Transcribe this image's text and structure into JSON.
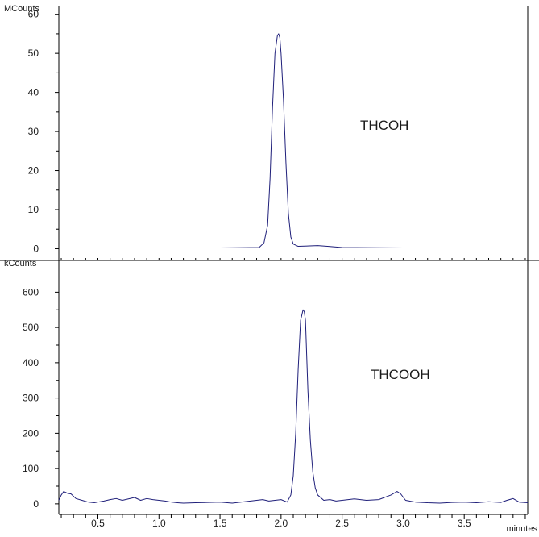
{
  "chart_data": [
    {
      "type": "line",
      "ylabel": "MCounts",
      "ylim": [
        -3,
        62
      ],
      "xlim": [
        0.18,
        4.02
      ],
      "y_ticks": [
        "0",
        "10",
        "20",
        "30",
        "40",
        "50",
        "60"
      ],
      "annotation": "THCOH",
      "series_color": "#1f1f7a",
      "grid": false,
      "series": [
        {
          "x": [
            0.18,
            1.0,
            1.5,
            1.82,
            1.86,
            1.89,
            1.91,
            1.93,
            1.95,
            1.97,
            1.98,
            1.99,
            2.0,
            2.02,
            2.04,
            2.06,
            2.08,
            2.1,
            2.14,
            2.3,
            2.38,
            2.5,
            3.0,
            3.5,
            4.02
          ],
          "y": [
            0.2,
            0.2,
            0.2,
            0.3,
            1.5,
            6,
            18,
            36,
            50,
            54.5,
            55,
            54,
            50,
            38,
            22,
            9,
            3,
            1.2,
            0.6,
            0.8,
            0.6,
            0.3,
            0.2,
            0.2,
            0.2
          ]
        }
      ]
    },
    {
      "type": "line",
      "ylabel": "kCounts",
      "xlabel": "minutes",
      "ylim": [
        -30,
        690
      ],
      "xlim": [
        0.18,
        4.02
      ],
      "x_ticks": [
        "0.5",
        "1.0",
        "1.5",
        "2.0",
        "2.5",
        "3.0",
        "3.5"
      ],
      "y_ticks": [
        "0",
        "100",
        "200",
        "300",
        "400",
        "500",
        "600"
      ],
      "annotation": "THCOOH",
      "series_color": "#1f1f7a",
      "grid": false,
      "series": [
        {
          "x": [
            0.18,
            0.2,
            0.22,
            0.25,
            0.28,
            0.32,
            0.37,
            0.42,
            0.47,
            0.5,
            0.55,
            0.6,
            0.65,
            0.7,
            0.75,
            0.8,
            0.85,
            0.9,
            0.95,
            1.0,
            1.05,
            1.1,
            1.15,
            1.2,
            1.3,
            1.4,
            1.5,
            1.6,
            1.7,
            1.8,
            1.85,
            1.9,
            1.95,
            2.0,
            2.05,
            2.08,
            2.1,
            2.12,
            2.14,
            2.16,
            2.18,
            2.19,
            2.2,
            2.21,
            2.22,
            2.24,
            2.26,
            2.28,
            2.3,
            2.35,
            2.4,
            2.45,
            2.5,
            2.6,
            2.7,
            2.8,
            2.9,
            2.95,
            2.98,
            3.02,
            3.1,
            3.2,
            3.3,
            3.4,
            3.5,
            3.6,
            3.7,
            3.8,
            3.85,
            3.9,
            3.95,
            4.02
          ],
          "y": [
            10,
            25,
            35,
            30,
            28,
            15,
            10,
            5,
            3,
            5,
            8,
            12,
            15,
            10,
            14,
            18,
            10,
            15,
            12,
            10,
            8,
            5,
            3,
            2,
            3,
            4,
            5,
            2,
            6,
            10,
            12,
            8,
            10,
            12,
            5,
            25,
            80,
            200,
            380,
            520,
            550,
            545,
            520,
            420,
            320,
            180,
            90,
            45,
            25,
            10,
            12,
            8,
            10,
            14,
            10,
            12,
            25,
            35,
            28,
            10,
            5,
            3,
            2,
            4,
            5,
            3,
            6,
            4,
            10,
            15,
            5,
            3
          ]
        }
      ]
    }
  ]
}
